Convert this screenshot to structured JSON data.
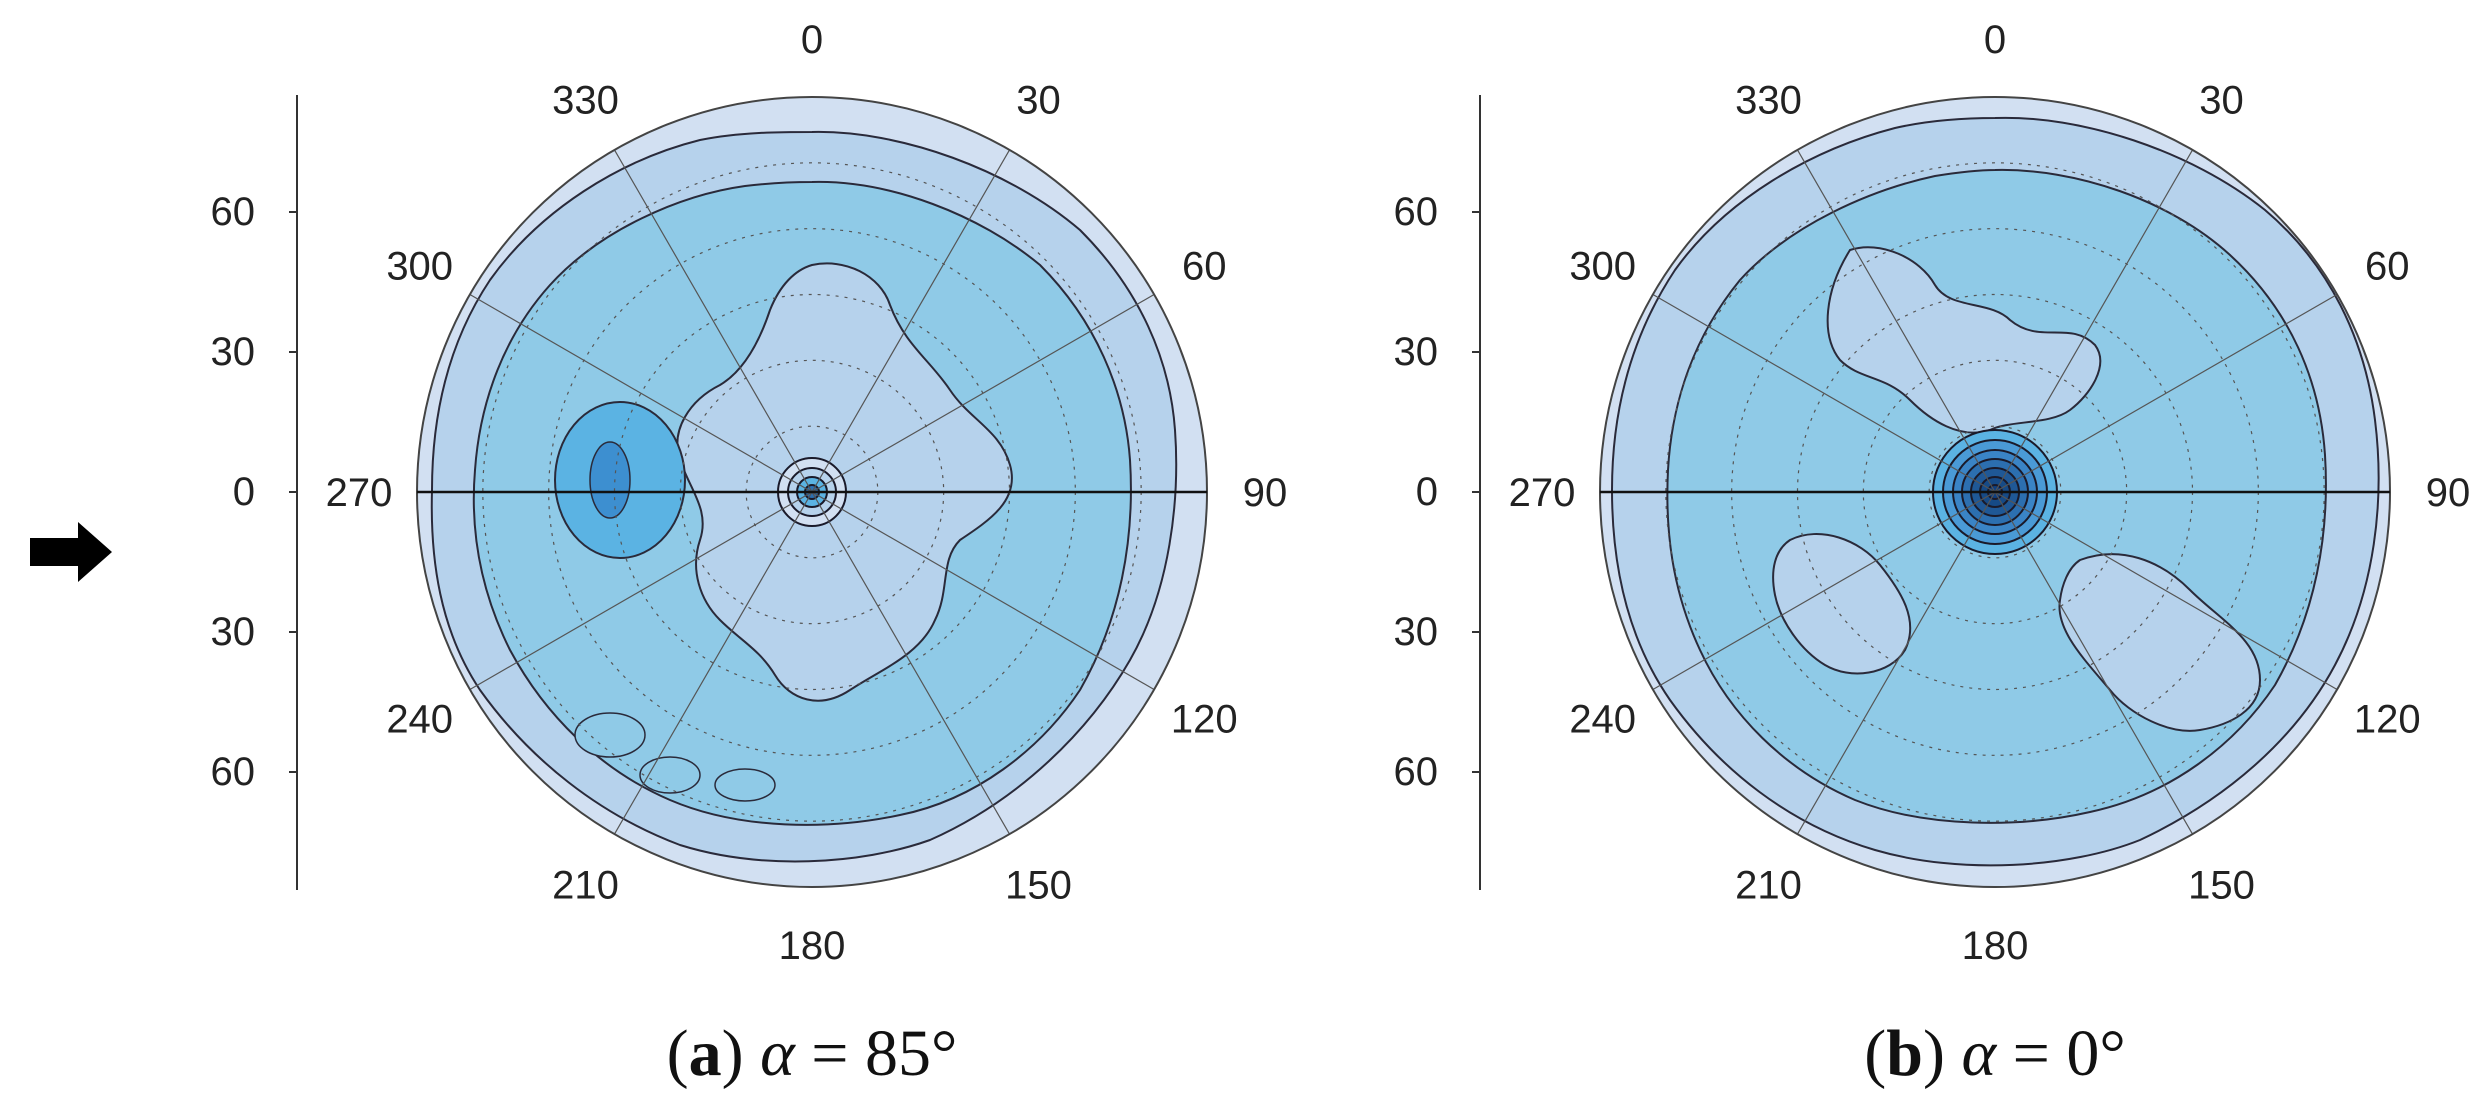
{
  "chart_data": [
    {
      "type": "heatmap",
      "projection": "polar",
      "caption_letter": "a",
      "caption_symbol": "α",
      "caption_rest": " = 85°",
      "angular_ticks": [
        "0",
        "30",
        "60",
        "90",
        "120",
        "150",
        "180",
        "210",
        "240",
        "270",
        "300",
        "330"
      ],
      "radial_ticks_upper": [
        "60",
        "30",
        "0"
      ],
      "radial_ticks_lower": [
        "30",
        "60"
      ],
      "radial_range": [
        0,
        90
      ],
      "colormap": [
        "#d2e0f2",
        "#b6d2ec",
        "#8fcae7",
        "#5bb3e3",
        "#2c6fb0",
        "#0f3f80"
      ],
      "center_peak": true,
      "note_features": "darker blob near azimuth 270 at about 45 from center"
    },
    {
      "type": "heatmap",
      "projection": "polar",
      "caption_letter": "b",
      "caption_symbol": "α",
      "caption_rest": " = 0°",
      "angular_ticks": [
        "0",
        "30",
        "60",
        "90",
        "120",
        "150",
        "180",
        "210",
        "240",
        "270",
        "300",
        "330"
      ],
      "radial_ticks_upper": [
        "60",
        "30",
        "0"
      ],
      "radial_ticks_lower": [
        "30",
        "60"
      ],
      "radial_range": [
        0,
        90
      ],
      "colormap": [
        "#d2e0f2",
        "#b6d2ec",
        "#8fcae7",
        "#5bb3e3",
        "#2c6fb0",
        "#0f3f80"
      ],
      "center_peak": true
    }
  ],
  "arrow_icon": "right-arrow-icon"
}
